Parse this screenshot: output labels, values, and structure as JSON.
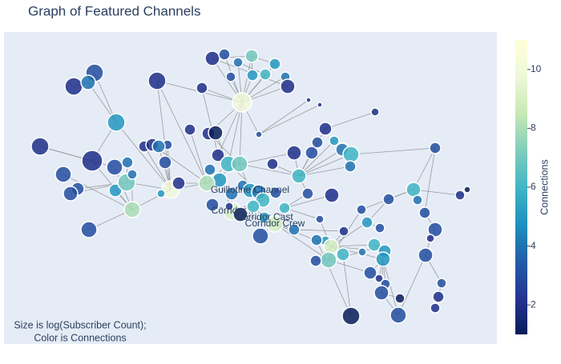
{
  "chart_data": {
    "type": "network",
    "title": "Graph of Featured Channels",
    "annotation": [
      "Size is log(Subscriber Count);",
      "Color is Connections"
    ],
    "xlim": [
      5,
      620
    ],
    "ylim": [
      430,
      40
    ],
    "nodes": {
      "x": [
        265,
        280,
        297,
        314,
        343,
        331,
        315,
        356,
        359,
        288,
        302,
        252,
        196,
        385,
        399,
        468,
        118,
        92,
        110,
        145,
        50,
        115,
        79,
        143,
        159,
        97,
        88,
        144,
        158,
        165,
        111,
        213,
        223,
        180,
        190,
        209,
        198,
        206,
        165,
        201,
        237,
        260,
        269,
        272,
        262,
        285,
        299,
        274,
        258,
        289,
        303,
        312,
        323,
        340,
        367,
        373,
        389,
        406,
        396,
        417,
        427,
        438,
        437,
        384,
        414,
        323,
        344,
        328,
        355,
        290,
        300,
        316,
        330,
        343,
        325,
        265,
        286,
        367,
        399,
        451,
        485,
        516,
        521,
        543,
        574,
        583,
        458,
        474,
        429,
        406,
        395,
        413,
        428,
        410,
        394,
        467,
        480,
        478,
        462,
        473,
        481,
        476,
        499,
        497,
        530,
        543,
        537,
        531,
        551,
        547,
        543,
        438,
        452
      ],
      "y": [
        73,
        68,
        78,
        70,
        80,
        93,
        94,
        96,
        108,
        96,
        128,
        110,
        101,
        125,
        131,
        140,
        91,
        108,
        103,
        153,
        183,
        201,
        218,
        209,
        203,
        236,
        242,
        238,
        228,
        262,
        287,
        237,
        229,
        183,
        181,
        181,
        183,
        203,
        218,
        242,
        162,
        167,
        166,
        194,
        212,
        205,
        205,
        225,
        229,
        242,
        232,
        238,
        168,
        205,
        191,
        220,
        191,
        161,
        178,
        176,
        187,
        193,
        208,
        242,
        244,
        240,
        241,
        250,
        260,
        264,
        268,
        258,
        272,
        280,
        295,
        256,
        258,
        287,
        274,
        262,
        249,
        237,
        250,
        185,
        244,
        237,
        278,
        285,
        289,
        301,
        300,
        308,
        318,
        325,
        326,
        306,
        314,
        324,
        341,
        348,
        355,
        366,
        373,
        394,
        266,
        287,
        298,
        319,
        354,
        371,
        385,
        395,
        315
      ],
      "connections": [
        2,
        3,
        4,
        7,
        5,
        6,
        5,
        4,
        2,
        3,
        10,
        2,
        2,
        2,
        2,
        2,
        3,
        2,
        4,
        5,
        2,
        2,
        3,
        3,
        4,
        3,
        3,
        5,
        7,
        8,
        3,
        10,
        2,
        2,
        2,
        3,
        4,
        3,
        4,
        5,
        2,
        2,
        1,
        2,
        4,
        6,
        7,
        5,
        8,
        4,
        4,
        5,
        3,
        2,
        2,
        6,
        3,
        2,
        3,
        5,
        4,
        6,
        4,
        3,
        2,
        4,
        3,
        6,
        6,
        9,
        1,
        6,
        5,
        9,
        3,
        3,
        2,
        4,
        3,
        3,
        3,
        6,
        4,
        3,
        2,
        1,
        5,
        3,
        2,
        5,
        4,
        9,
        6,
        7,
        3,
        6,
        5,
        5,
        3,
        2,
        3,
        3,
        1,
        3,
        3,
        3,
        2,
        3,
        3,
        2,
        2,
        1,
        4
      ],
      "sizes": [
        18,
        14,
        12,
        16,
        14,
        14,
        14,
        12,
        18,
        12,
        24,
        14,
        22,
        6,
        6,
        10,
        22,
        22,
        18,
        22,
        22,
        26,
        20,
        20,
        14,
        16,
        18,
        16,
        22,
        20,
        20,
        22,
        16,
        14,
        16,
        12,
        16,
        16,
        12,
        10,
        14,
        16,
        18,
        16,
        14,
        20,
        20,
        18,
        20,
        16,
        14,
        18,
        8,
        14,
        18,
        18,
        16,
        16,
        14,
        12,
        16,
        20,
        14,
        14,
        18,
        18,
        14,
        18,
        14,
        22,
        18,
        16,
        14,
        20,
        20,
        16,
        10,
        14,
        10,
        12,
        14,
        18,
        12,
        14,
        12,
        8,
        14,
        12,
        12,
        12,
        14,
        18,
        16,
        20,
        14,
        16,
        16,
        18,
        16,
        10,
        12,
        18,
        12,
        20,
        14,
        18,
        10,
        18,
        12,
        14,
        12,
        22,
        10
      ],
      "labels": [
        null,
        null,
        null,
        null,
        null,
        null,
        null,
        null,
        null,
        null,
        null,
        null,
        null,
        null,
        null,
        null,
        null,
        null,
        null,
        null,
        null,
        null,
        null,
        null,
        null,
        null,
        null,
        null,
        null,
        null,
        null,
        null,
        null,
        null,
        null,
        null,
        null,
        null,
        null,
        null,
        null,
        null,
        null,
        null,
        null,
        null,
        null,
        null,
        null,
        null,
        null,
        "Guillotine Channel",
        null,
        null,
        null,
        null,
        null,
        null,
        null,
        null,
        null,
        null,
        null,
        null,
        null,
        null,
        null,
        null,
        null,
        "Corridor...",
        null,
        null,
        "Corridor Cast",
        "Corridor Crew",
        null,
        null,
        null,
        null,
        null,
        null,
        null,
        null,
        null,
        null,
        null,
        null,
        null,
        null,
        null,
        null,
        null,
        null,
        null,
        null,
        null,
        null,
        null,
        null,
        null,
        null,
        null,
        null,
        null,
        null,
        null,
        null,
        null,
        null,
        null,
        null,
        null,
        null,
        null
      ]
    },
    "edges": [
      [
        10,
        0
      ],
      [
        10,
        1
      ],
      [
        10,
        2
      ],
      [
        10,
        3
      ],
      [
        10,
        4
      ],
      [
        10,
        5
      ],
      [
        10,
        6
      ],
      [
        10,
        7
      ],
      [
        10,
        8
      ],
      [
        10,
        9
      ],
      [
        10,
        11
      ],
      [
        10,
        12
      ],
      [
        10,
        45
      ],
      [
        10,
        46
      ],
      [
        10,
        41
      ],
      [
        10,
        52
      ],
      [
        10,
        43
      ],
      [
        52,
        13
      ],
      [
        52,
        14
      ],
      [
        57,
        15
      ],
      [
        3,
        0
      ],
      [
        3,
        4
      ],
      [
        3,
        6
      ],
      [
        0,
        8
      ],
      [
        2,
        5
      ],
      [
        16,
        18
      ],
      [
        17,
        18
      ],
      [
        18,
        19
      ],
      [
        16,
        19
      ],
      [
        19,
        21
      ],
      [
        19,
        31
      ],
      [
        20,
        21
      ],
      [
        21,
        29
      ],
      [
        22,
        29
      ],
      [
        23,
        29
      ],
      [
        24,
        28
      ],
      [
        28,
        31
      ],
      [
        25,
        28
      ],
      [
        26,
        28
      ],
      [
        27,
        29
      ],
      [
        29,
        31
      ],
      [
        30,
        29
      ],
      [
        31,
        33
      ],
      [
        31,
        35
      ],
      [
        31,
        37
      ],
      [
        31,
        39
      ],
      [
        31,
        36
      ],
      [
        34,
        48
      ],
      [
        12,
        31
      ],
      [
        12,
        48
      ],
      [
        11,
        43
      ],
      [
        40,
        48
      ],
      [
        32,
        48
      ],
      [
        31,
        48
      ],
      [
        38,
        29
      ],
      [
        20,
        23
      ],
      [
        48,
        45
      ],
      [
        48,
        46
      ],
      [
        46,
        45
      ],
      [
        45,
        65
      ],
      [
        46,
        51
      ],
      [
        46,
        54
      ],
      [
        55,
        46
      ],
      [
        55,
        56
      ],
      [
        55,
        58
      ],
      [
        55,
        59
      ],
      [
        55,
        60
      ],
      [
        55,
        61
      ],
      [
        55,
        62
      ],
      [
        55,
        54
      ],
      [
        55,
        53
      ],
      [
        55,
        63
      ],
      [
        56,
        57
      ],
      [
        61,
        62
      ],
      [
        51,
        65
      ],
      [
        65,
        67
      ],
      [
        67,
        69
      ],
      [
        69,
        71
      ],
      [
        69,
        70
      ],
      [
        69,
        75
      ],
      [
        69,
        76
      ],
      [
        73,
        72
      ],
      [
        73,
        68
      ],
      [
        73,
        74
      ],
      [
        73,
        77
      ],
      [
        73,
        91
      ],
      [
        73,
        93
      ],
      [
        69,
        73
      ],
      [
        71,
        72
      ],
      [
        67,
        66
      ],
      [
        68,
        64
      ],
      [
        68,
        63
      ],
      [
        47,
        69
      ],
      [
        49,
        69
      ],
      [
        50,
        51
      ],
      [
        44,
        47
      ],
      [
        43,
        45
      ],
      [
        42,
        45
      ],
      [
        41,
        46
      ],
      [
        91,
        89
      ],
      [
        91,
        90
      ],
      [
        91,
        92
      ],
      [
        91,
        93
      ],
      [
        91,
        94
      ],
      [
        91,
        95
      ],
      [
        91,
        96
      ],
      [
        91,
        97
      ],
      [
        91,
        88
      ],
      [
        91,
        86
      ],
      [
        91,
        78
      ],
      [
        93,
        94
      ],
      [
        93,
        98
      ],
      [
        93,
        112
      ],
      [
        95,
        96
      ],
      [
        95,
        97
      ],
      [
        97,
        98
      ],
      [
        97,
        99
      ],
      [
        97,
        100
      ],
      [
        97,
        101
      ],
      [
        101,
        102
      ],
      [
        101,
        103
      ],
      [
        103,
        97
      ],
      [
        86,
        87
      ],
      [
        86,
        80
      ],
      [
        80,
        81
      ],
      [
        81,
        82
      ],
      [
        81,
        84
      ],
      [
        84,
        85
      ],
      [
        81,
        83
      ],
      [
        83,
        104
      ],
      [
        104,
        105
      ],
      [
        105,
        106
      ],
      [
        106,
        107
      ],
      [
        107,
        108
      ],
      [
        108,
        109
      ],
      [
        109,
        110
      ],
      [
        103,
        107
      ],
      [
        111,
        92
      ],
      [
        111,
        90
      ],
      [
        83,
        61
      ],
      [
        81,
        79
      ],
      [
        79,
        93
      ],
      [
        88,
        77
      ],
      [
        68,
        78
      ]
    ],
    "colorbar": {
      "title": "Connections",
      "clim": [
        1,
        11
      ],
      "ticks": [
        2,
        4,
        6,
        8,
        10
      ],
      "colorscale": [
        "#081d58",
        "#253494",
        "#225ea8",
        "#1d91c0",
        "#41b6c4",
        "#7fcdbb",
        "#c7e9b4",
        "#edf8d9",
        "#ffffd9"
      ]
    },
    "edge_color": "#888",
    "plot_bg": "#e5ecf6"
  }
}
